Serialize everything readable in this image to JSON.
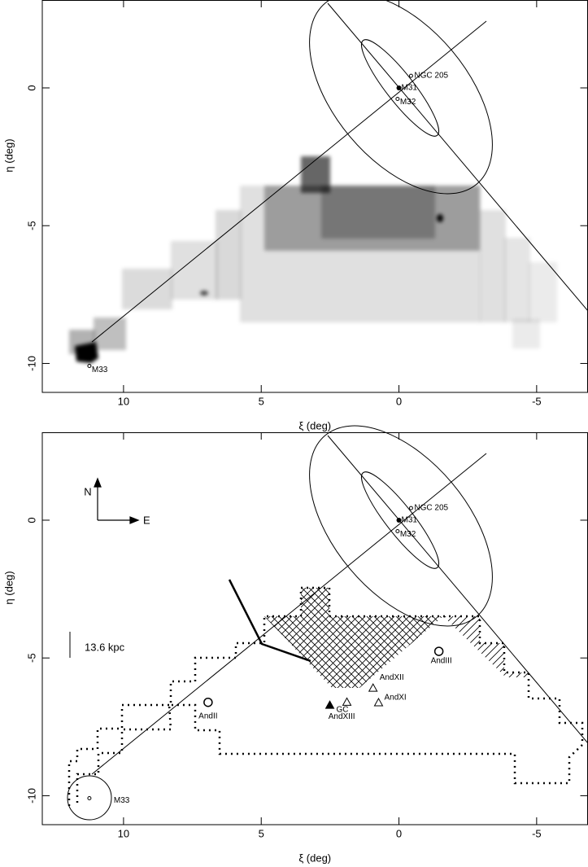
{
  "chart_data": [
    {
      "type": "scatter",
      "xlabel": "ξ (deg)",
      "ylabel": "η (deg)",
      "xlim": [
        12.95,
        -6.85
      ],
      "ylim": [
        -11.05,
        3.19
      ],
      "xticks": [
        10,
        5,
        0,
        -5
      ],
      "yticks": [
        0,
        -5,
        -10
      ],
      "annotations": [
        {
          "text": "M31",
          "x": 0,
          "y": 0,
          "marker": "dot"
        },
        {
          "text": "M32",
          "x": 0.05,
          "y": -0.4,
          "marker": "ring"
        },
        {
          "text": "NGC 205",
          "x": -0.44,
          "y": 0.44,
          "marker": "ring"
        },
        {
          "text": "M33",
          "x": 11.24,
          "y": -10.09,
          "marker": "ring"
        }
      ]
    },
    {
      "type": "scatter",
      "xlabel": "ξ (deg)",
      "ylabel": "η (deg)",
      "xlim": [
        12.95,
        -6.85
      ],
      "ylim": [
        -11.05,
        3.19
      ],
      "xticks": [
        10,
        5,
        0,
        -5
      ],
      "yticks": [
        0,
        -5,
        -10
      ],
      "annotations": [
        {
          "text": "M31",
          "x": 0,
          "y": 0,
          "marker": "dot"
        },
        {
          "text": "M32",
          "x": 0.05,
          "y": -0.4,
          "marker": "ring"
        },
        {
          "text": "NGC 205",
          "x": -0.44,
          "y": 0.44,
          "marker": "ring"
        },
        {
          "text": "M33",
          "x": 11.24,
          "y": -10.09,
          "marker": "ring"
        },
        {
          "text": "AndII",
          "x": 6.93,
          "y": -6.61,
          "marker": "circle"
        },
        {
          "text": "AndIII",
          "x": -1.45,
          "y": -4.76,
          "marker": "circle"
        },
        {
          "text": "AndXII",
          "x": 0.94,
          "y": -6.09,
          "marker": "triangle"
        },
        {
          "text": "AndXI",
          "x": 0.74,
          "y": -6.62,
          "marker": "triangle"
        },
        {
          "text": "AndXIII",
          "x": 1.89,
          "y": -6.6,
          "marker": "triangle"
        },
        {
          "text": "GC",
          "x": 2.51,
          "y": -6.71,
          "marker": "filled-triangle"
        }
      ],
      "compass": {
        "north": "N",
        "east": "E"
      },
      "scale_label": "13.6 kpc"
    }
  ]
}
